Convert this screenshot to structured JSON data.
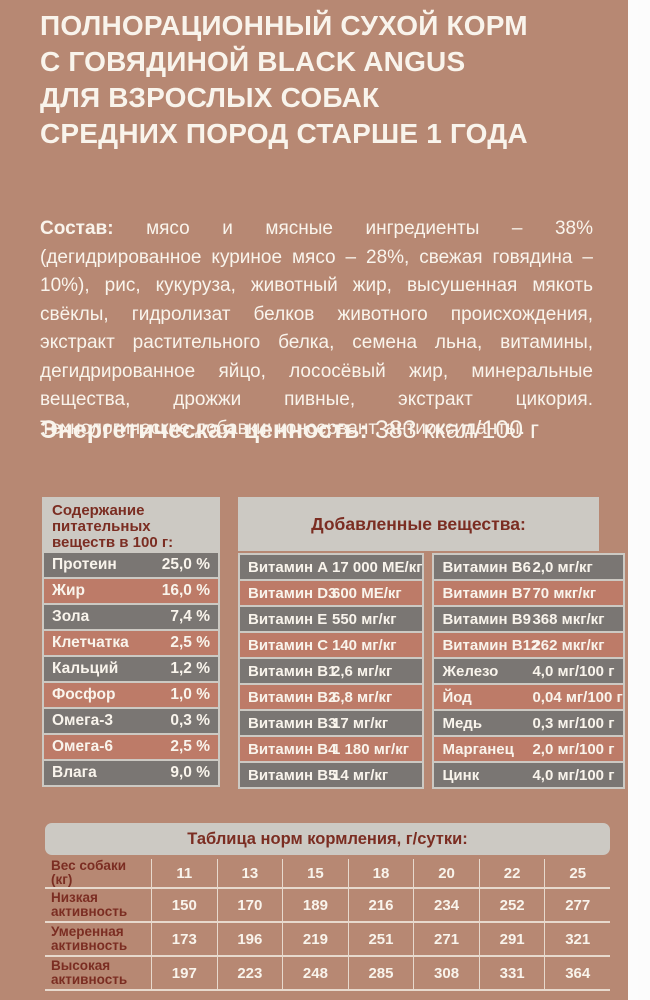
{
  "theme": {
    "background": "#b78873",
    "accent_dark_red": "#7b2d22",
    "row_gray": "#7a7673",
    "row_pink": "#bd7b68",
    "panel_light_gray": "#ccc9c3",
    "text_cream": "#f9f4ec"
  },
  "title": {
    "lines": [
      "ПОЛНОРАЦИОННЫЙ СУХОЙ КОРМ",
      "С ГОВЯДИНОЙ BLACK ANGUS",
      "ДЛЯ ВЗРОСЛЫХ СОБАК",
      "СРЕДНИХ ПОРОД СТАРШЕ 1 ГОДА"
    ]
  },
  "composition": {
    "label": "Состав:",
    "text": "мясо и мясные ингредиенты – 38% (дегидрированное куриное мясо – 28%, свежая говядина – 10%), рис, кукуруза, животный жир, высушенная мякоть свёклы, гидролизат белков животного происхождения, экстракт растительного белка, семена льна, витамины, дегидрированное яйцо, лососёвый жир, минеральные вещества, дрожжи пивные, экстракт цикория. Технологические добавки: консервант, антиоксиданты."
  },
  "energy": {
    "label": "Энергетическая ценность:",
    "value": "383 ккал/100 г"
  },
  "nutrients": {
    "header": "Содержание питательных веществ в 100 г:",
    "rows": [
      {
        "name": "Протеин",
        "value": "25,0 %"
      },
      {
        "name": "Жир",
        "value": "16,0 %"
      },
      {
        "name": "Зола",
        "value": "7,4 %"
      },
      {
        "name": "Клетчатка",
        "value": "2,5 %"
      },
      {
        "name": "Кальций",
        "value": "1,2 %"
      },
      {
        "name": "Фосфор",
        "value": "1,0 %"
      },
      {
        "name": "Омега-3",
        "value": "0,3 %"
      },
      {
        "name": "Омега-6",
        "value": "2,5 %"
      },
      {
        "name": "Влага",
        "value": "9,0 %"
      }
    ]
  },
  "additives": {
    "header": "Добавленные вещества:",
    "col1": [
      {
        "name": "Витамин A",
        "value": "17 000 МЕ/кг"
      },
      {
        "name": "Витамин D3",
        "value": "600 МЕ/кг"
      },
      {
        "name": "Витамин E",
        "value": "550 мг/кг"
      },
      {
        "name": "Витамин C",
        "value": "140 мг/кг"
      },
      {
        "name": "Витамин B1",
        "value": "2,6 мг/кг"
      },
      {
        "name": "Витамин B2",
        "value": "6,8 мг/кг"
      },
      {
        "name": "Витамин B3",
        "value": "17 мг/кг"
      },
      {
        "name": "Витамин B4",
        "value": "1 180 мг/кг"
      },
      {
        "name": "Витамин B5",
        "value": "14 мг/кг"
      }
    ],
    "col2": [
      {
        "name": "Витамин B6",
        "value": "2,0 мг/кг"
      },
      {
        "name": "Витамин B7",
        "value": "70 мкг/кг"
      },
      {
        "name": "Витамин B9",
        "value": "368 мкг/кг"
      },
      {
        "name": "Витамин B12",
        "value": "262 мкг/кг"
      },
      {
        "name": "Железо",
        "value": "4,0 мг/100 г"
      },
      {
        "name": "Йод",
        "value": "0,04 мг/100 г"
      },
      {
        "name": "Медь",
        "value": "0,3 мг/100 г"
      },
      {
        "name": "Марганец",
        "value": "2,0 мг/100 г"
      },
      {
        "name": "Цинк",
        "value": "4,0 мг/100 г"
      }
    ]
  },
  "feeding": {
    "header": "Таблица норм кормления, г/сутки:",
    "weight_label": "Вес собаки (кг)",
    "weights": [
      "11",
      "13",
      "15",
      "18",
      "20",
      "22",
      "25"
    ],
    "rows": [
      {
        "label": "Низкая активность",
        "values": [
          "150",
          "170",
          "189",
          "216",
          "234",
          "252",
          "277"
        ]
      },
      {
        "label": "Умеренная активность",
        "values": [
          "173",
          "196",
          "219",
          "251",
          "271",
          "291",
          "321"
        ]
      },
      {
        "label": "Высокая активность",
        "values": [
          "197",
          "223",
          "248",
          "285",
          "308",
          "331",
          "364"
        ]
      }
    ]
  }
}
